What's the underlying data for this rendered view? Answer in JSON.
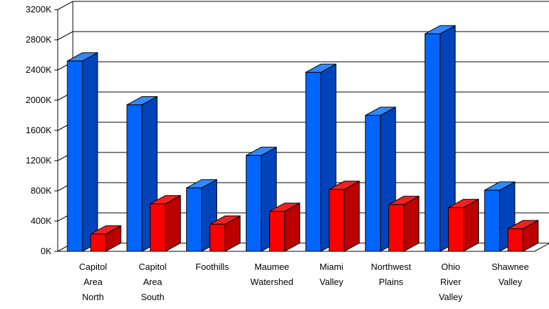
{
  "chart_data": {
    "type": "bar",
    "categories": [
      "Capitol Area North",
      "Capitol Area South",
      "Foothills",
      "Maumee Watershed",
      "Miami Valley",
      "Northwest Plains",
      "Ohio River Valley",
      "Shawnee Valley"
    ],
    "category_lines": [
      [
        "Capitol",
        "Area",
        "North"
      ],
      [
        "Capitol",
        "Area",
        "South"
      ],
      [
        "Foothills"
      ],
      [
        "Maumee",
        "Watershed"
      ],
      [
        "Miami",
        "Valley"
      ],
      [
        "Northwest",
        "Plains"
      ],
      [
        "Ohio",
        "River",
        "Valley"
      ],
      [
        "Shawnee",
        "Valley"
      ]
    ],
    "series": [
      {
        "values": [
          2520,
          1940,
          840,
          1270,
          2370,
          1800,
          2880,
          810
        ],
        "color": "#0066ff",
        "side_color": "#0044bb",
        "top_color": "#3388ff"
      },
      {
        "values": [
          230,
          630,
          360,
          530,
          820,
          620,
          580,
          300
        ],
        "color": "#ff0000",
        "side_color": "#bb0000",
        "top_color": "#ee2222"
      }
    ],
    "y_ticks": [
      "0K",
      "400K",
      "800K",
      "1200K",
      "1600K",
      "2000K",
      "2400K",
      "2800K",
      "3200K"
    ],
    "ylim": [
      0,
      3200
    ],
    "y_step": 400,
    "grid": true,
    "bar_style": "3d"
  }
}
